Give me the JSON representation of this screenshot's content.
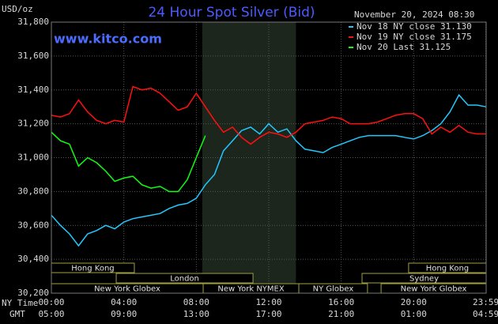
{
  "chart_data": {
    "type": "line",
    "title": "24 Hour Spot Silver (Bid)",
    "timestamp": "November 20, 2024 08:30",
    "watermark": "www.kitco.com",
    "y_label": "USD/oz",
    "x_label": "NY Time",
    "x2_label": "GMT",
    "x": [
      0,
      0.5,
      1,
      1.5,
      2,
      2.5,
      3,
      3.5,
      4,
      4.5,
      5,
      5.5,
      6,
      6.5,
      7,
      7.5,
      8,
      8.5,
      9,
      9.5,
      10,
      10.5,
      11,
      11.5,
      12,
      12.5,
      13,
      13.5,
      14,
      14.5,
      15,
      15.5,
      16,
      16.5,
      17,
      17.5,
      18,
      18.5,
      19,
      19.5,
      20,
      20.5,
      21,
      21.5,
      22,
      22.5,
      23,
      23.5,
      24
    ],
    "xlim": [
      0,
      24
    ],
    "xticks": [
      {
        "value": 0,
        "label": "00:00"
      },
      {
        "value": 4,
        "label": "04:00"
      },
      {
        "value": 8,
        "label": "08:00"
      },
      {
        "value": 12,
        "label": "12:00"
      },
      {
        "value": 16,
        "label": "16:00"
      },
      {
        "value": 20,
        "label": "20:00"
      },
      {
        "value": 23.983,
        "label": "23:59"
      }
    ],
    "x2tick_labels": [
      "05:00",
      "09:00",
      "13:00",
      "17:00",
      "21:00",
      "01:00",
      "04:59"
    ],
    "ylim": [
      30.2,
      31.8
    ],
    "yticks": [
      {
        "value": 30.2,
        "label": "30,200"
      },
      {
        "value": 30.4,
        "label": "30,400"
      },
      {
        "value": 30.6,
        "label": "30,600"
      },
      {
        "value": 30.8,
        "label": "30,800"
      },
      {
        "value": 31.0,
        "label": "31,000"
      },
      {
        "value": 31.2,
        "label": "31,200"
      },
      {
        "value": 31.4,
        "label": "31,400"
      },
      {
        "value": 31.6,
        "label": "31,600"
      },
      {
        "value": 31.8,
        "label": "31,800"
      }
    ],
    "grid": true,
    "highlight_x": [
      8.33,
      13.5
    ],
    "highlight_color": "#1c261c",
    "sessions": [
      [
        {
          "label": "Hong Kong",
          "start": 0,
          "end": 4.58
        },
        {
          "label": "Hong Kong",
          "start": 19.72,
          "end": 24
        }
      ],
      [
        {
          "label": "London",
          "start": 3.58,
          "end": 11.13
        },
        {
          "label": "Sydney",
          "start": 17.15,
          "end": 24
        }
      ],
      [
        {
          "label": "New York Globex",
          "start": 0,
          "end": 8.38
        },
        {
          "label": "New York NYMEX",
          "start": 8.38,
          "end": 13.66
        },
        {
          "label": "NY Globex",
          "start": 13.66,
          "end": 17.45
        },
        {
          "label": "New York Globex",
          "start": 18.2,
          "end": 24
        }
      ]
    ],
    "series": [
      {
        "name": "Nov 18 NY close 31.130",
        "color": "#22c8ff",
        "values": [
          30.66,
          30.6,
          30.55,
          30.48,
          30.55,
          30.57,
          30.6,
          30.58,
          30.62,
          30.64,
          30.65,
          30.66,
          30.67,
          30.7,
          30.72,
          30.73,
          30.76,
          30.84,
          30.9,
          31.04,
          31.1,
          31.16,
          31.18,
          31.14,
          31.2,
          31.15,
          31.17,
          31.1,
          31.05,
          31.04,
          31.03,
          31.06,
          31.08,
          31.1,
          31.12,
          31.13,
          31.13,
          31.13,
          31.13,
          31.12,
          31.11,
          31.13,
          31.16,
          31.2,
          31.27,
          31.37,
          31.31,
          31.31,
          31.3
        ]
      },
      {
        "name": "Nov 19 NY close 31.175",
        "color": "#ff1010",
        "values": [
          31.25,
          31.24,
          31.26,
          31.34,
          31.27,
          31.22,
          31.2,
          31.22,
          31.21,
          31.42,
          31.4,
          31.41,
          31.38,
          31.33,
          31.28,
          31.3,
          31.38,
          31.3,
          31.22,
          31.15,
          31.18,
          31.12,
          31.08,
          31.12,
          31.15,
          31.14,
          31.12,
          31.15,
          31.2,
          31.21,
          31.22,
          31.24,
          31.23,
          31.2,
          31.2,
          31.2,
          31.21,
          31.23,
          31.25,
          31.26,
          31.26,
          31.23,
          31.14,
          31.18,
          31.15,
          31.19,
          31.15,
          31.14,
          31.14
        ]
      },
      {
        "name": "Nov 20 Last 31.125",
        "color": "#10ff10",
        "values": [
          31.15,
          31.1,
          31.08,
          30.95,
          31.0,
          30.97,
          30.92,
          30.86,
          30.88,
          30.89,
          30.84,
          30.82,
          30.83,
          30.8,
          30.8,
          30.87,
          31.0,
          31.13,
          null,
          null,
          null,
          null,
          null,
          null,
          null,
          null,
          null,
          null,
          null,
          null,
          null,
          null,
          null,
          null,
          null,
          null,
          null,
          null,
          null,
          null,
          null,
          null,
          null,
          null,
          null,
          null,
          null,
          null,
          null
        ]
      }
    ]
  }
}
